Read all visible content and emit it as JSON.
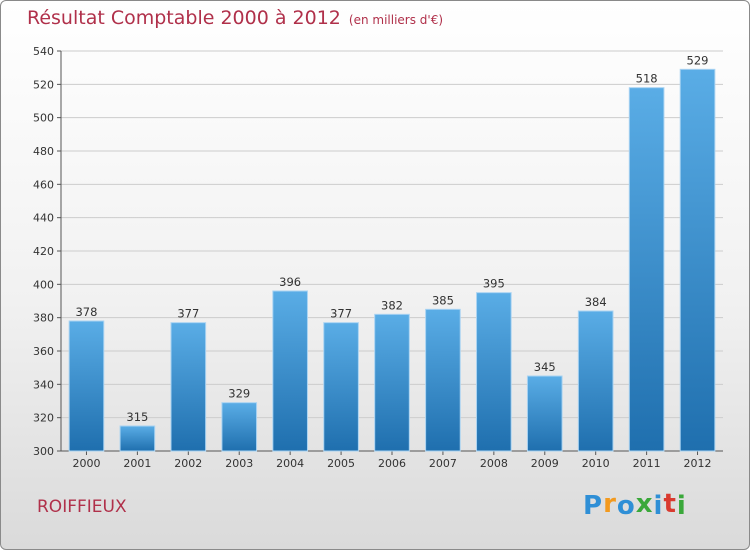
{
  "header": {
    "title": "Résultat Comptable 2000 à 2012",
    "subtitle": "(en milliers d'€)"
  },
  "footer": {
    "place": "ROIFFIEUX",
    "brand_letters": [
      "P",
      "r",
      "o",
      "x",
      "i",
      "t",
      "i"
    ],
    "brand_colors": [
      "#2f8fd6",
      "#f39a1e",
      "#2f8fd6",
      "#3aa83a",
      "#2f8fd6",
      "#d93a2f",
      "#3aa83a"
    ]
  },
  "colors": {
    "accent": "#b0304a",
    "bar_top": "#5aade6",
    "bar_bottom": "#1f6fae"
  },
  "chart_data": {
    "type": "bar",
    "title": "Résultat Comptable 2000 à 2012",
    "subtitle": "(en milliers d'€)",
    "categories": [
      "2000",
      "2001",
      "2002",
      "2003",
      "2004",
      "2005",
      "2006",
      "2007",
      "2008",
      "2009",
      "2010",
      "2011",
      "2012"
    ],
    "values": [
      378,
      315,
      377,
      329,
      396,
      377,
      382,
      385,
      395,
      345,
      384,
      518,
      529
    ],
    "yticks": [
      300,
      320,
      340,
      360,
      380,
      400,
      420,
      440,
      460,
      480,
      500,
      520,
      540
    ],
    "ylim": [
      300,
      540
    ],
    "xlabel": "",
    "ylabel": "",
    "grid": true
  }
}
